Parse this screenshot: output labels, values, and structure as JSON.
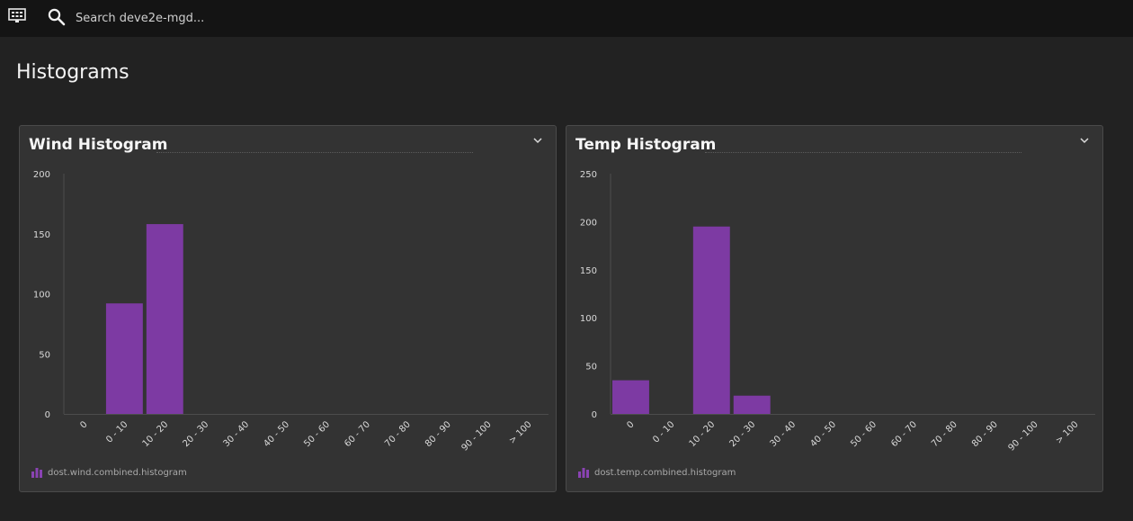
{
  "topbar": {
    "search_placeholder": "Search deve2e-mgd..."
  },
  "page": {
    "title": "Histograms"
  },
  "colors": {
    "bar": "#7d3aa3",
    "axis_text": "#d9d9d9"
  },
  "icons": {
    "menu": "monitor-menu-icon",
    "search": "search-icon",
    "collapse": "chevron-down-icon",
    "legend": "bar-chart-icon"
  },
  "panels": [
    {
      "title": "Wind Histogram",
      "metric": "dost.wind.combined.histogram"
    },
    {
      "title": "Temp Histogram",
      "metric": "dost.temp.combined.histogram"
    }
  ],
  "chart_data": [
    {
      "type": "bar",
      "title": "Wind Histogram",
      "categories": [
        "0",
        "0 - 10",
        "10 - 20",
        "20 - 30",
        "30 - 40",
        "40 - 50",
        "50 - 60",
        "60 - 70",
        "70 - 80",
        "80 - 90",
        "90 - 100",
        "> 100"
      ],
      "series": [
        {
          "name": "dost.wind.combined.histogram",
          "values": [
            0,
            92,
            158,
            0,
            0,
            0,
            0,
            0,
            0,
            0,
            0,
            0
          ]
        }
      ],
      "yticks": [
        0,
        50,
        100,
        150,
        200
      ],
      "ylim": [
        0,
        200
      ],
      "grid": false,
      "legend": "bottom-left"
    },
    {
      "type": "bar",
      "title": "Temp Histogram",
      "categories": [
        "0",
        "0 - 10",
        "10 - 20",
        "20 - 30",
        "30 - 40",
        "40 - 50",
        "50 - 60",
        "60 - 70",
        "70 - 80",
        "80 - 90",
        "90 - 100",
        "> 100"
      ],
      "series": [
        {
          "name": "dost.temp.combined.histogram",
          "values": [
            35,
            0,
            195,
            19,
            0,
            0,
            0,
            0,
            0,
            0,
            0,
            0
          ]
        }
      ],
      "yticks": [
        0,
        50,
        100,
        150,
        200,
        250
      ],
      "ylim": [
        0,
        250
      ],
      "grid": false,
      "legend": "bottom-left"
    }
  ]
}
